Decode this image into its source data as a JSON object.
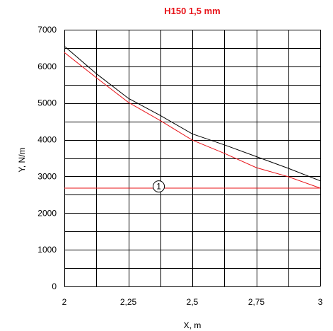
{
  "chart_data": {
    "type": "line",
    "title": "H150 1,5 mm",
    "xlabel": "X, m",
    "ylabel": "Y, N/m",
    "xlim": [
      2,
      3
    ],
    "ylim": [
      0,
      7000
    ],
    "x_ticks": [
      2,
      2.25,
      2.5,
      2.75,
      3
    ],
    "x_tick_labels": [
      "2",
      "2,25",
      "2,5",
      "2,75",
      "3"
    ],
    "y_ticks": [
      0,
      1000,
      2000,
      3000,
      4000,
      5000,
      6000,
      7000
    ],
    "y_tick_labels": [
      "0",
      "1000",
      "2000",
      "3000",
      "4000",
      "5000",
      "6000",
      "7000"
    ],
    "grid": true,
    "series": [
      {
        "color": "#000000",
        "x": [
          2,
          2.125,
          2.25,
          2.375,
          2.5,
          2.625,
          2.75,
          2.875,
          3
        ],
        "y": [
          6550,
          5800,
          5130,
          4660,
          4160,
          3860,
          3540,
          3220,
          2880
        ]
      },
      {
        "color": "#e8141a",
        "x": [
          2,
          2.125,
          2.25,
          2.375,
          2.5,
          2.625,
          2.75,
          2.875,
          3
        ],
        "y": [
          6380,
          5690,
          5020,
          4520,
          3990,
          3630,
          3240,
          2990,
          2680
        ]
      },
      {
        "color": "#e8141a",
        "x": [
          2,
          3
        ],
        "y": [
          2680,
          2680
        ]
      }
    ],
    "annotations": [
      {
        "text": "1",
        "x": 2.38,
        "y": 2900
      }
    ]
  }
}
